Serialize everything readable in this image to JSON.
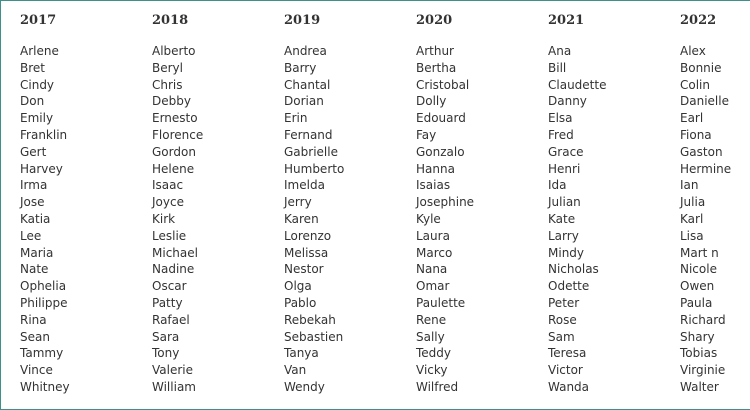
{
  "columns": [
    {
      "year": "2017",
      "names": [
        "Arlene",
        "Bret",
        "Cindy",
        "Don",
        "Emily",
        "Franklin",
        "Gert",
        "Harvey",
        "Irma",
        "Jose",
        "Katia",
        "Lee",
        "Maria",
        "Nate",
        "Ophelia",
        "Philippe",
        "Rina",
        "Sean",
        "Tammy",
        "Vince",
        "Whitney"
      ]
    },
    {
      "year": "2018",
      "names": [
        "Alberto",
        "Beryl",
        "Chris",
        "Debby",
        "Ernesto",
        "Florence",
        "Gordon",
        "Helene",
        "Isaac",
        "Joyce",
        "Kirk",
        "Leslie",
        "Michael",
        "Nadine",
        "Oscar",
        "Patty",
        "Rafael",
        "Sara",
        "Tony",
        "Valerie",
        "William"
      ]
    },
    {
      "year": "2019",
      "names": [
        "Andrea",
        "Barry",
        "Chantal",
        "Dorian",
        "Erin",
        "Fernand",
        "Gabrielle",
        "Humberto",
        "Imelda",
        "Jerry",
        "Karen",
        "Lorenzo",
        "Melissa",
        "Nestor",
        "Olga",
        "Pablo",
        "Rebekah",
        "Sebastien",
        "Tanya",
        "Van",
        "Wendy"
      ]
    },
    {
      "year": "2020",
      "names": [
        "Arthur",
        "Bertha",
        "Cristobal",
        "Dolly",
        "Edouard",
        "Fay",
        "Gonzalo",
        "Hanna",
        "Isaias",
        "Josephine",
        "Kyle",
        "Laura",
        "Marco",
        "Nana",
        "Omar",
        "Paulette",
        "Rene",
        "Sally",
        "Teddy",
        "Vicky",
        "Wilfred"
      ]
    },
    {
      "year": "2021",
      "names": [
        "Ana",
        "Bill",
        "Claudette",
        "Danny",
        "Elsa",
        "Fred",
        "Grace",
        "Henri",
        "Ida",
        "Julian",
        "Kate",
        "Larry",
        "Mindy",
        "Nicholas",
        "Odette",
        "Peter",
        "Rose",
        "Sam",
        "Teresa",
        "Victor",
        "Wanda"
      ]
    },
    {
      "year": "2022",
      "names": [
        "Alex",
        "Bonnie",
        "Colin",
        "Danielle",
        "Earl",
        "Fiona",
        "Gaston",
        "Hermine",
        "Ian",
        "Julia",
        "Karl",
        "Lisa",
        "Mart n",
        "Nicole",
        "Owen",
        "Paula",
        "Richard",
        "Shary",
        "Tobias",
        "Virginie",
        "Walter"
      ]
    }
  ]
}
